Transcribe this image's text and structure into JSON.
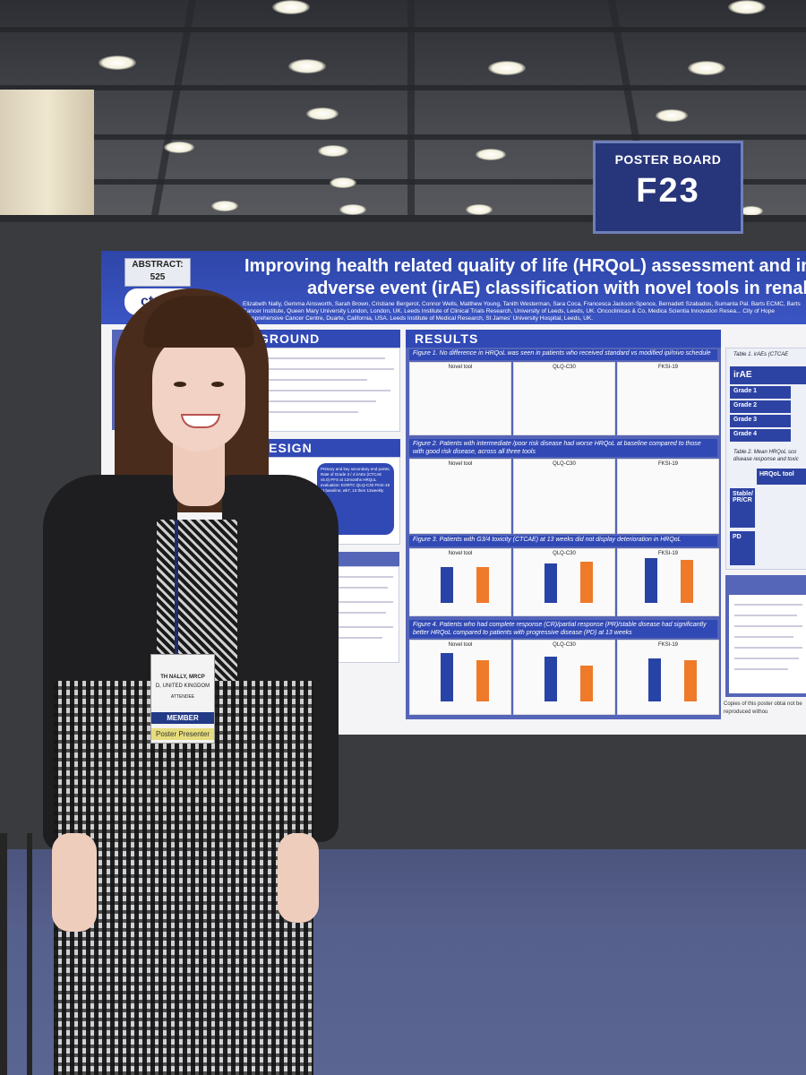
{
  "sign": {
    "label": "POSTER BOARD",
    "number": "F23"
  },
  "poster": {
    "abstract_label": "ABSTRACT:",
    "abstract_number": "525",
    "logo_text": "ct",
    "title_line1": "Improving health related quality of life (HRQoL) assessment and imm",
    "title_line2": "adverse event (irAE) classification with novel tools in renal ca",
    "authors": "Elizabeth Nally, Gemma Ainsworth, Sarah Brown, Cristiane Bergerot, Connor Wells, Matthew Young, Tanith Westerman, Sara Coca, Francesca Jackson-Spence, Bernadett Szabados, Sumanta Pal. Barts ECMC, Barts Cancer Institute, Queen Mary University London, London, UK. Leeds Institute of Clinical Trials Research, University of Leeds, Leeds, UK. Oncoclinicas & Co, Medica Scientia Innovation Resea... City of Hope Comprehensive Cancer Centre, Duarte, California, USA. Leeds Institute of Medical Research, St James' University Hospital, Leeds, UK.",
    "background_title": "GROUND",
    "design_title": "DESIGN",
    "results_title": "RESULTS",
    "design_box": "Primary and key secondary end points: Rate of Grade 3 / 4 irAEs (CTCAE v5.0) PFS at 12months HRQoL evaluation: EORTC QLQ-C30 FKSI-19 At baseline, wk7, 13 then 12weekly",
    "fig1": "Figure 1. No difference in HRQoL was seen in patients who received standard vs modified ipi/nivo schedule",
    "fig2": "Figure 2. Patients with intermediate /poor risk disease had worse HRQoL at baseline compared to those with good risk disease, across all three tools",
    "fig3": "Figure 3. Patients with G3/4 toxicity (CTCAE) at 13 weeks did not display deterioration in HRQoL",
    "fig4": "Figure 4. Patients who had complete response (CR)/partial response (PR)/stable disease had significantly better HRQoL compared to patients with progressive disease (PD) at 13 weeks",
    "chart_titles": [
      "Novel tool",
      "QLQ-C30",
      "FKSI-19"
    ],
    "table1_caption": "Table 1. irAEs (CTCAE",
    "table1_header": "irAE",
    "table1_rows": [
      "Grade 1",
      "Grade 2",
      "Grade 3",
      "Grade 4"
    ],
    "table2_caption": "Table 2. Mean HRQoL sco disease response and toxic",
    "table2_header": "HRQoL tool",
    "stable_label": "Stable/ PR/CR",
    "pd_label": "PD",
    "copies_text": "Copies of this poster obtai not be reproduced withou"
  },
  "badge": {
    "name": "TH NALLY, MRCP",
    "country": "D, UNITED KINGDOM",
    "attendee": "ATTENDEE",
    "member": "MEMBER",
    "presenter": "Poster Presenter"
  },
  "colors": {
    "poster_blue": "#3149b5",
    "bar_blue": "#2743a5",
    "bar_orange": "#ee7a2a",
    "sign_blue": "#27357a"
  }
}
